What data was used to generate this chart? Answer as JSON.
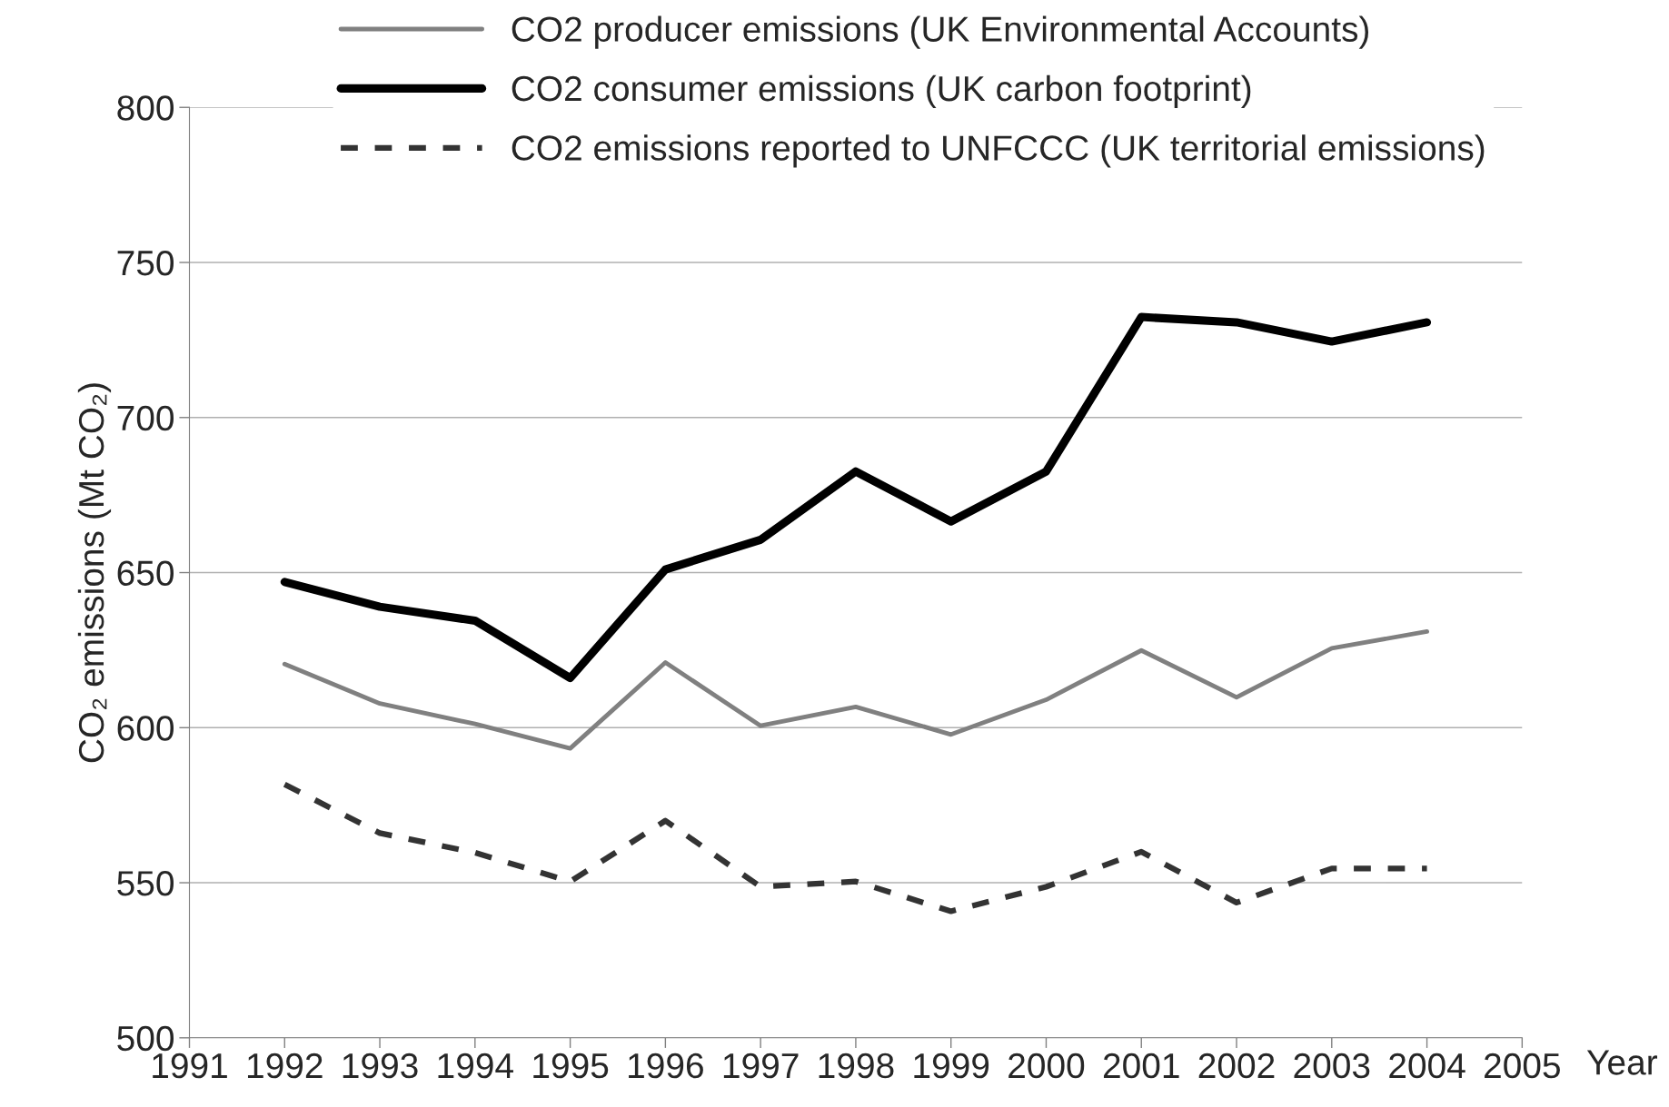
{
  "chart_data": {
    "type": "line",
    "xlabel": "Year",
    "ylabel": "CO₂ emissions (Mt CO₂)",
    "x": [
      1992,
      1993,
      1994,
      1995,
      1996,
      1997,
      1998,
      1999,
      2000,
      2001,
      2002,
      2003,
      2004
    ],
    "xlim": [
      1991,
      2005
    ],
    "xticks": [
      1991,
      1992,
      1993,
      1994,
      1995,
      1996,
      1997,
      1998,
      1999,
      2000,
      2001,
      2002,
      2003,
      2004,
      2005
    ],
    "ylim": [
      500,
      800
    ],
    "yticks": [
      500,
      550,
      600,
      650,
      700,
      750,
      800
    ],
    "grid": "y",
    "legend": "top",
    "marker": "none",
    "series": [
      {
        "name": "CO2 producer emissions (UK Environmental Accounts)",
        "color": "#808080",
        "line_style": "solid",
        "values": [
          620.5,
          607.8,
          601.2,
          593.3,
          621,
          600.6,
          606.7,
          597.8,
          609,
          624.9,
          609.8,
          625.6,
          631
        ]
      },
      {
        "name": "CO2 consumer emissions (UK carbon footprint)",
        "color": "#000000",
        "line_style": "solid",
        "values": [
          647,
          639,
          634.5,
          616,
          651,
          660.6,
          682.6,
          666.5,
          682.6,
          732.4,
          730.7,
          724.5,
          730.7
        ]
      },
      {
        "name": "CO2 emissions reported to UNFCCC (UK territorial emissions)",
        "color": "#333333",
        "line_style": "dashed",
        "values": [
          581.7,
          566,
          559.7,
          550.4,
          570,
          548.7,
          550.4,
          540.8,
          548.7,
          560,
          543.6,
          554.6,
          554.6
        ]
      }
    ]
  }
}
